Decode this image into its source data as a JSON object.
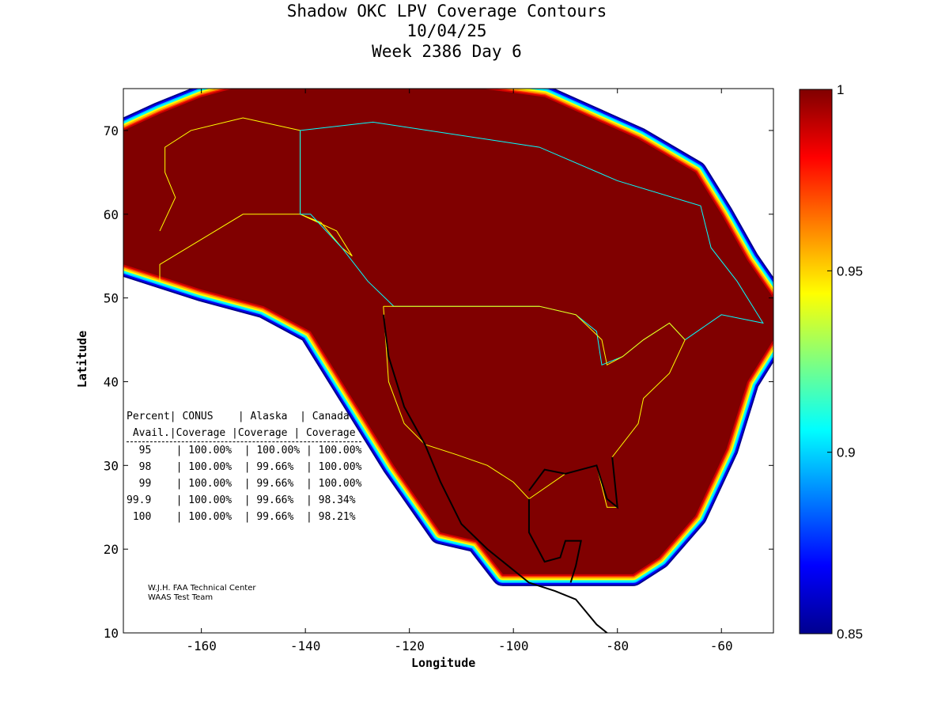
{
  "chart_data": {
    "type": "heatmap",
    "title": [
      "Shadow OKC LPV Coverage Contours",
      "10/04/25",
      "Week 2386 Day 6"
    ],
    "xlabel": "Longitude",
    "ylabel": "Latitude",
    "xlim": [
      -175,
      -50
    ],
    "ylim": [
      10,
      75
    ],
    "xticks": [
      -160,
      -140,
      -120,
      -100,
      -80,
      -60
    ],
    "yticks": [
      10,
      20,
      30,
      40,
      50,
      60,
      70
    ],
    "colorbar": {
      "range": [
        0.85,
        1
      ],
      "ticks": [
        0.85,
        0.9,
        0.95,
        1
      ],
      "tick_labels": [
        "0.85",
        "0.9",
        "0.95",
        "1"
      ],
      "colormap": "jet"
    },
    "colors": {
      "full": "#800000",
      "conus_outline": "#ffff00",
      "canada_outline": "#00ffff",
      "alaska_outline": "#ffff00"
    },
    "table": {
      "header1": [
        "Percent",
        "CONUS",
        "Alaska",
        "Canada"
      ],
      "header2": [
        "Avail.",
        "Coverage",
        "Coverage",
        "Coverage"
      ],
      "rows": [
        [
          "95",
          "100.00%",
          "100.00%",
          "100.00%"
        ],
        [
          "98",
          "100.00%",
          "99.66%",
          "100.00%"
        ],
        [
          "99",
          "100.00%",
          "99.66%",
          "100.00%"
        ],
        [
          "99.9",
          "100.00%",
          "99.66%",
          "98.34%"
        ],
        [
          "100",
          "100.00%",
          "99.66%",
          "98.21%"
        ]
      ]
    }
  },
  "credit": [
    "W.J.H. FAA Technical Center",
    "WAAS Test Team"
  ]
}
